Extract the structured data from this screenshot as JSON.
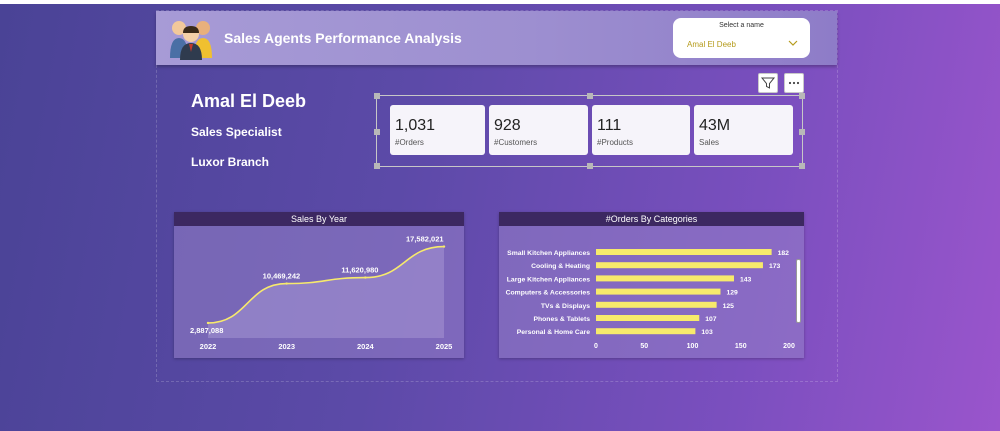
{
  "header": {
    "title": "Sales Agents Performance Analysis",
    "slicer_label": "Select a name",
    "slicer_value": "Amal El Deeb",
    "icon": "people-group-icon"
  },
  "toolbar": {
    "filter_icon": "filter-icon",
    "more_icon": "more-options-icon"
  },
  "agent": {
    "name": "Amal El Deeb",
    "role": "Sales Specialist",
    "branch": "Luxor Branch"
  },
  "kpis": [
    {
      "value": "1,031",
      "label": "#Orders"
    },
    {
      "value": "928",
      "label": "#Customers"
    },
    {
      "value": "111",
      "label": "#Products"
    },
    {
      "value": "43M",
      "label": "Sales"
    }
  ],
  "colors": {
    "accent": "#f7ea6c",
    "title_bar": "#3c2861"
  },
  "chart_data": [
    {
      "type": "line",
      "title": "Sales By Year",
      "categories": [
        "2022",
        "2023",
        "2024",
        "2025"
      ],
      "values": [
        2887088,
        10469242,
        11620980,
        17582021
      ],
      "data_labels": [
        "2,887,088",
        "10,469,242",
        "11,620,980",
        "17,582,021"
      ],
      "ylim": [
        0,
        20000000
      ],
      "grid": false
    },
    {
      "type": "bar",
      "orientation": "horizontal",
      "title": "#Orders By Categories",
      "categories": [
        "Small Kitchen Appliances",
        "Cooling & Heating",
        "Large Kitchen Appliances",
        "Computers & Accessories",
        "TVs & Displays",
        "Phones & Tablets",
        "Personal & Home Care"
      ],
      "values": [
        182,
        173,
        143,
        129,
        125,
        107,
        103
      ],
      "xticks": [
        "0",
        "50",
        "100",
        "150",
        "200"
      ],
      "xlim": [
        0,
        200
      ],
      "grid": false
    }
  ]
}
